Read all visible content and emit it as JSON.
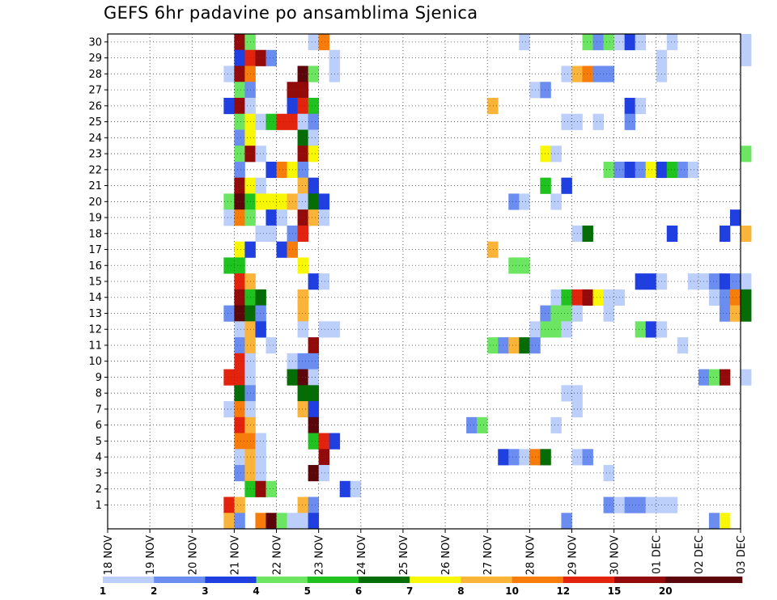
{
  "chart_data": {
    "type": "heatmap",
    "title": "GEFS 6hr padavine po ansamblima Sjenica",
    "x_tick_labels": [
      "18 NOV",
      "19 NOV",
      "20 NOV",
      "21 NOV",
      "22 NOV",
      "23 NOV",
      "24 NOV",
      "25 NOV",
      "26 NOV",
      "27 NOV",
      "28 NOV",
      "29 NOV",
      "30 NOV",
      "01 DEC",
      "02 DEC",
      "03 DEC"
    ],
    "y_tick_labels": [
      "1",
      "2",
      "3",
      "4",
      "5",
      "6",
      "7",
      "8",
      "9",
      "10",
      "11",
      "12",
      "13",
      "14",
      "15",
      "16",
      "17",
      "18",
      "19",
      "20",
      "21",
      "22",
      "23",
      "24",
      "25",
      "26",
      "27",
      "28",
      "29",
      "30"
    ],
    "x_range_days": [
      0,
      15
    ],
    "steps_per_day": 4,
    "y_range": [
      0,
      30
    ],
    "grid": true,
    "legend_placement": "bottom",
    "legend": {
      "colors": [
        "#bccffa",
        "#6b8def",
        "#1f3fe0",
        "#6ce563",
        "#1fc21f",
        "#066d06",
        "#f8f708",
        "#fbb43a",
        "#f67d0c",
        "#e2240f",
        "#930a0b",
        "#5a060a"
      ],
      "labels": [
        "1",
        "2",
        "3",
        "4",
        "5",
        "6",
        "7",
        "8",
        "10",
        "12",
        "15",
        "20"
      ]
    },
    "cells_format": "[time_step_index_6h, member, color_class_1_to_12]",
    "cells": [
      [
        12,
        30,
        11
      ],
      [
        13,
        30,
        4
      ],
      [
        19,
        30,
        1
      ],
      [
        20,
        30,
        9
      ],
      [
        39,
        30,
        1
      ],
      [
        45,
        30,
        4
      ],
      [
        46,
        30,
        2
      ],
      [
        47,
        30,
        4
      ],
      [
        48,
        30,
        1
      ],
      [
        49,
        30,
        3
      ],
      [
        50,
        30,
        1
      ],
      [
        53,
        30,
        1
      ],
      [
        60,
        30,
        1
      ],
      [
        12,
        29,
        3
      ],
      [
        13,
        29,
        10
      ],
      [
        14,
        29,
        11
      ],
      [
        15,
        29,
        2
      ],
      [
        21,
        29,
        1
      ],
      [
        52,
        29,
        1
      ],
      [
        60,
        29,
        1
      ],
      [
        11,
        28,
        1
      ],
      [
        12,
        28,
        11
      ],
      [
        13,
        28,
        9
      ],
      [
        18,
        28,
        12
      ],
      [
        19,
        28,
        4
      ],
      [
        21,
        28,
        1
      ],
      [
        43,
        28,
        1
      ],
      [
        44,
        28,
        8
      ],
      [
        45,
        28,
        9
      ],
      [
        46,
        28,
        2
      ],
      [
        47,
        28,
        2
      ],
      [
        52,
        28,
        1
      ],
      [
        12,
        27,
        4
      ],
      [
        13,
        27,
        2
      ],
      [
        17,
        27,
        11
      ],
      [
        18,
        27,
        11
      ],
      [
        40,
        27,
        1
      ],
      [
        41,
        27,
        2
      ],
      [
        11,
        26,
        3
      ],
      [
        12,
        26,
        11
      ],
      [
        13,
        26,
        1
      ],
      [
        17,
        26,
        3
      ],
      [
        18,
        26,
        10
      ],
      [
        19,
        26,
        5
      ],
      [
        36,
        26,
        8
      ],
      [
        49,
        26,
        3
      ],
      [
        50,
        26,
        1
      ],
      [
        12,
        25,
        4
      ],
      [
        13,
        25,
        7
      ],
      [
        14,
        25,
        1
      ],
      [
        15,
        25,
        5
      ],
      [
        16,
        25,
        10
      ],
      [
        17,
        25,
        10
      ],
      [
        18,
        25,
        1
      ],
      [
        19,
        25,
        2
      ],
      [
        43,
        25,
        1
      ],
      [
        44,
        25,
        1
      ],
      [
        46,
        25,
        1
      ],
      [
        49,
        25,
        2
      ],
      [
        12,
        24,
        2
      ],
      [
        13,
        24,
        7
      ],
      [
        18,
        24,
        6
      ],
      [
        19,
        24,
        1
      ],
      [
        12,
        23,
        4
      ],
      [
        13,
        23,
        11
      ],
      [
        14,
        23,
        1
      ],
      [
        18,
        23,
        11
      ],
      [
        19,
        23,
        7
      ],
      [
        41,
        23,
        7
      ],
      [
        42,
        23,
        1
      ],
      [
        60,
        23,
        4
      ],
      [
        12,
        22,
        2
      ],
      [
        15,
        22,
        3
      ],
      [
        16,
        22,
        9
      ],
      [
        17,
        22,
        7
      ],
      [
        18,
        22,
        2
      ],
      [
        47,
        22,
        4
      ],
      [
        48,
        22,
        2
      ],
      [
        49,
        22,
        3
      ],
      [
        50,
        22,
        2
      ],
      [
        51,
        22,
        7
      ],
      [
        52,
        22,
        3
      ],
      [
        53,
        22,
        5
      ],
      [
        54,
        22,
        2
      ],
      [
        55,
        22,
        1
      ],
      [
        12,
        21,
        11
      ],
      [
        13,
        21,
        7
      ],
      [
        14,
        21,
        1
      ],
      [
        18,
        21,
        8
      ],
      [
        19,
        21,
        3
      ],
      [
        41,
        21,
        5
      ],
      [
        43,
        21,
        3
      ],
      [
        11,
        20,
        4
      ],
      [
        12,
        20,
        12
      ],
      [
        13,
        20,
        5
      ],
      [
        14,
        20,
        7
      ],
      [
        15,
        20,
        7
      ],
      [
        16,
        20,
        7
      ],
      [
        17,
        20,
        8
      ],
      [
        18,
        20,
        1
      ],
      [
        19,
        20,
        6
      ],
      [
        20,
        20,
        3
      ],
      [
        38,
        20,
        2
      ],
      [
        39,
        20,
        1
      ],
      [
        42,
        20,
        1
      ],
      [
        11,
        19,
        1
      ],
      [
        12,
        19,
        9
      ],
      [
        13,
        19,
        4
      ],
      [
        15,
        19,
        3
      ],
      [
        16,
        19,
        1
      ],
      [
        18,
        19,
        11
      ],
      [
        19,
        19,
        8
      ],
      [
        20,
        19,
        1
      ],
      [
        59,
        19,
        3
      ],
      [
        14,
        18,
        1
      ],
      [
        15,
        18,
        1
      ],
      [
        17,
        18,
        2
      ],
      [
        18,
        18,
        10
      ],
      [
        44,
        18,
        1
      ],
      [
        45,
        18,
        6
      ],
      [
        53,
        18,
        3
      ],
      [
        58,
        18,
        3
      ],
      [
        60,
        18,
        8
      ],
      [
        12,
        17,
        7
      ],
      [
        13,
        17,
        3
      ],
      [
        16,
        17,
        3
      ],
      [
        17,
        17,
        9
      ],
      [
        36,
        17,
        8
      ],
      [
        11,
        16,
        5
      ],
      [
        12,
        16,
        5
      ],
      [
        18,
        16,
        7
      ],
      [
        38,
        16,
        4
      ],
      [
        39,
        16,
        4
      ],
      [
        12,
        15,
        10
      ],
      [
        13,
        15,
        8
      ],
      [
        19,
        15,
        3
      ],
      [
        20,
        15,
        1
      ],
      [
        50,
        15,
        3
      ],
      [
        51,
        15,
        3
      ],
      [
        52,
        15,
        1
      ],
      [
        55,
        15,
        1
      ],
      [
        56,
        15,
        1
      ],
      [
        57,
        15,
        2
      ],
      [
        58,
        15,
        3
      ],
      [
        59,
        15,
        2
      ],
      [
        60,
        15,
        1
      ],
      [
        12,
        14,
        11
      ],
      [
        13,
        14,
        5
      ],
      [
        14,
        14,
        6
      ],
      [
        18,
        14,
        8
      ],
      [
        42,
        14,
        1
      ],
      [
        43,
        14,
        5
      ],
      [
        44,
        14,
        10
      ],
      [
        45,
        14,
        11
      ],
      [
        46,
        14,
        7
      ],
      [
        47,
        14,
        1
      ],
      [
        48,
        14,
        1
      ],
      [
        57,
        14,
        1
      ],
      [
        58,
        14,
        2
      ],
      [
        59,
        14,
        9
      ],
      [
        60,
        14,
        6
      ],
      [
        11,
        13,
        2
      ],
      [
        12,
        13,
        12
      ],
      [
        13,
        13,
        6
      ],
      [
        14,
        13,
        2
      ],
      [
        18,
        13,
        8
      ],
      [
        41,
        13,
        2
      ],
      [
        42,
        13,
        4
      ],
      [
        43,
        13,
        4
      ],
      [
        44,
        13,
        1
      ],
      [
        47,
        13,
        1
      ],
      [
        58,
        13,
        2
      ],
      [
        59,
        13,
        8
      ],
      [
        60,
        13,
        6
      ],
      [
        12,
        12,
        1
      ],
      [
        13,
        12,
        8
      ],
      [
        14,
        12,
        3
      ],
      [
        18,
        12,
        1
      ],
      [
        20,
        12,
        1
      ],
      [
        21,
        12,
        1
      ],
      [
        40,
        12,
        1
      ],
      [
        41,
        12,
        4
      ],
      [
        42,
        12,
        4
      ],
      [
        43,
        12,
        1
      ],
      [
        50,
        12,
        4
      ],
      [
        51,
        12,
        3
      ],
      [
        52,
        12,
        1
      ],
      [
        12,
        11,
        2
      ],
      [
        13,
        11,
        8
      ],
      [
        15,
        11,
        1
      ],
      [
        19,
        11,
        11
      ],
      [
        36,
        11,
        4
      ],
      [
        37,
        11,
        2
      ],
      [
        38,
        11,
        8
      ],
      [
        39,
        11,
        6
      ],
      [
        40,
        11,
        2
      ],
      [
        54,
        11,
        1
      ],
      [
        12,
        10,
        10
      ],
      [
        13,
        10,
        1
      ],
      [
        17,
        10,
        1
      ],
      [
        18,
        10,
        2
      ],
      [
        19,
        10,
        2
      ],
      [
        11,
        9,
        10
      ],
      [
        12,
        9,
        10
      ],
      [
        13,
        9,
        1
      ],
      [
        17,
        9,
        6
      ],
      [
        18,
        9,
        12
      ],
      [
        19,
        9,
        1
      ],
      [
        56,
        9,
        2
      ],
      [
        57,
        9,
        4
      ],
      [
        58,
        9,
        11
      ],
      [
        60,
        9,
        1
      ],
      [
        12,
        8,
        6
      ],
      [
        13,
        8,
        2
      ],
      [
        18,
        8,
        6
      ],
      [
        19,
        8,
        6
      ],
      [
        43,
        8,
        1
      ],
      [
        44,
        8,
        1
      ],
      [
        11,
        7,
        1
      ],
      [
        12,
        7,
        9
      ],
      [
        13,
        7,
        1
      ],
      [
        18,
        7,
        8
      ],
      [
        19,
        7,
        3
      ],
      [
        44,
        7,
        1
      ],
      [
        12,
        6,
        10
      ],
      [
        13,
        6,
        8
      ],
      [
        19,
        6,
        12
      ],
      [
        34,
        6,
        2
      ],
      [
        35,
        6,
        4
      ],
      [
        42,
        6,
        1
      ],
      [
        12,
        5,
        9
      ],
      [
        13,
        5,
        9
      ],
      [
        14,
        5,
        1
      ],
      [
        19,
        5,
        5
      ],
      [
        20,
        5,
        10
      ],
      [
        21,
        5,
        3
      ],
      [
        12,
        4,
        1
      ],
      [
        13,
        4,
        8
      ],
      [
        14,
        4,
        1
      ],
      [
        20,
        4,
        11
      ],
      [
        37,
        4,
        3
      ],
      [
        38,
        4,
        2
      ],
      [
        39,
        4,
        1
      ],
      [
        40,
        4,
        9
      ],
      [
        41,
        4,
        6
      ],
      [
        44,
        4,
        1
      ],
      [
        45,
        4,
        2
      ],
      [
        12,
        3,
        2
      ],
      [
        13,
        3,
        8
      ],
      [
        14,
        3,
        1
      ],
      [
        19,
        3,
        12
      ],
      [
        20,
        3,
        1
      ],
      [
        47,
        3,
        1
      ],
      [
        13,
        2,
        5
      ],
      [
        14,
        2,
        11
      ],
      [
        15,
        2,
        4
      ],
      [
        22,
        2,
        3
      ],
      [
        23,
        2,
        1
      ],
      [
        11,
        1,
        10
      ],
      [
        12,
        1,
        8
      ],
      [
        18,
        1,
        8
      ],
      [
        19,
        1,
        2
      ],
      [
        47,
        1,
        2
      ],
      [
        48,
        1,
        1
      ],
      [
        49,
        1,
        2
      ],
      [
        50,
        1,
        2
      ],
      [
        51,
        1,
        1
      ],
      [
        52,
        1,
        1
      ],
      [
        53,
        1,
        1
      ],
      [
        11,
        0,
        8
      ],
      [
        12,
        0,
        2
      ],
      [
        14,
        0,
        9
      ],
      [
        15,
        0,
        12
      ],
      [
        16,
        0,
        4
      ],
      [
        17,
        0,
        1
      ],
      [
        18,
        0,
        1
      ],
      [
        19,
        0,
        3
      ],
      [
        43,
        0,
        2
      ],
      [
        57,
        0,
        2
      ],
      [
        58,
        0,
        7
      ]
    ]
  }
}
